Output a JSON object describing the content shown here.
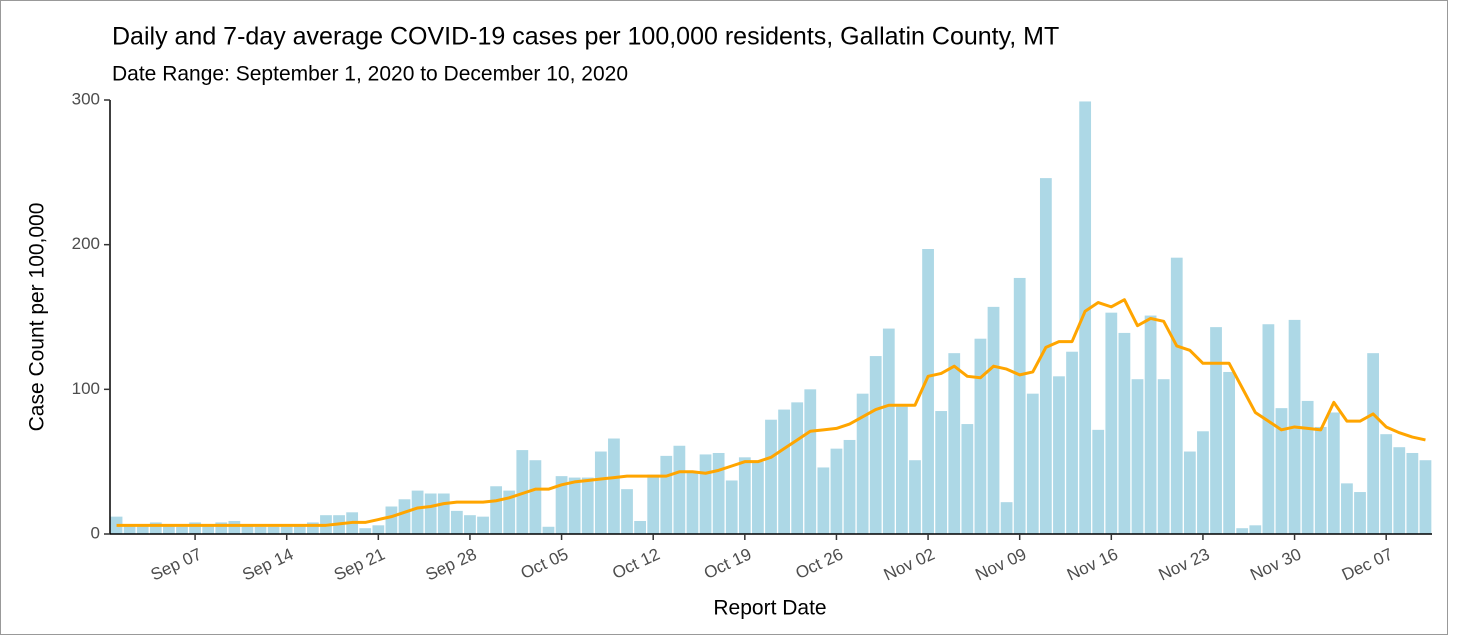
{
  "chart_data": {
    "type": "combo",
    "title": "Daily and 7-day average COVID-19 cases per 100,000 residents, Gallatin County, MT",
    "subtitle": "Date Range: September 1, 2020 to December 10, 2020",
    "x_label": "Report Date",
    "y_label": "Case Count per 100,000",
    "categories": [
      null,
      null,
      null,
      null,
      null,
      null,
      "Sep 07",
      null,
      null,
      null,
      null,
      null,
      null,
      "Sep 14",
      null,
      null,
      null,
      null,
      null,
      null,
      "Sep 21",
      null,
      null,
      null,
      null,
      null,
      null,
      "Sep 28",
      null,
      null,
      null,
      null,
      null,
      null,
      "Oct 05",
      null,
      null,
      null,
      null,
      null,
      null,
      "Oct 12",
      null,
      null,
      null,
      null,
      null,
      null,
      "Oct 19",
      null,
      null,
      null,
      null,
      null,
      null,
      "Oct 26",
      null,
      null,
      null,
      null,
      null,
      null,
      "Nov 02",
      null,
      null,
      null,
      null,
      null,
      null,
      "Nov 09",
      null,
      null,
      null,
      null,
      null,
      null,
      "Nov 16",
      null,
      null,
      null,
      null,
      null,
      null,
      "Nov 23",
      null,
      null,
      null,
      null,
      null,
      null,
      "Nov 30",
      null,
      null,
      null,
      null,
      null,
      null,
      "Dec 07",
      null,
      null,
      null
    ],
    "series": [
      {
        "type": "bar",
        "color": "#add8e6",
        "values": [
          12,
          6,
          6,
          8,
          6,
          5,
          8,
          6,
          8,
          9,
          6,
          5,
          5,
          5,
          6,
          8,
          13,
          13,
          15,
          4,
          6,
          19,
          24,
          30,
          28,
          28,
          16,
          13,
          12,
          33,
          30,
          58,
          51,
          5,
          40,
          39,
          39,
          57,
          66,
          31,
          9,
          41,
          54,
          61,
          43,
          55,
          56,
          37,
          53,
          50,
          79,
          86,
          91,
          100,
          46,
          59,
          65,
          97,
          123,
          142,
          88,
          51,
          197,
          85,
          125,
          76,
          135,
          157,
          22,
          177,
          97,
          246,
          109,
          126,
          299,
          72,
          153,
          139,
          107,
          151,
          107,
          191,
          57,
          71,
          143,
          112,
          4,
          6,
          145,
          87,
          148,
          92,
          74,
          84,
          35,
          29,
          125,
          69,
          60,
          56,
          51
        ]
      },
      {
        "type": "line",
        "color": "#ffa500",
        "values": [
          6,
          6,
          6,
          6,
          6,
          6,
          6,
          6,
          6,
          6,
          6,
          6,
          6,
          6,
          6,
          6,
          6,
          7,
          8,
          8,
          10,
          12,
          15,
          18,
          19,
          21,
          22,
          22,
          22,
          23,
          25,
          28,
          31,
          31,
          34,
          36,
          37,
          38,
          39,
          40,
          40,
          40,
          40,
          43,
          43,
          42,
          44,
          47,
          50,
          50,
          53,
          59,
          65,
          71,
          72,
          73,
          76,
          81,
          86,
          89,
          89,
          89,
          109,
          111,
          116,
          109,
          108,
          116,
          114,
          110,
          112,
          129,
          133,
          133,
          154,
          160,
          157,
          162,
          144,
          149,
          147,
          130,
          127,
          118,
          118,
          118,
          101,
          84,
          78,
          72,
          74,
          73,
          72,
          91,
          78,
          78,
          83,
          74,
          70,
          67,
          65
        ]
      }
    ],
    "ylim": [
      0,
      300
    ],
    "yticks": [
      0,
      100,
      200,
      300
    ]
  }
}
